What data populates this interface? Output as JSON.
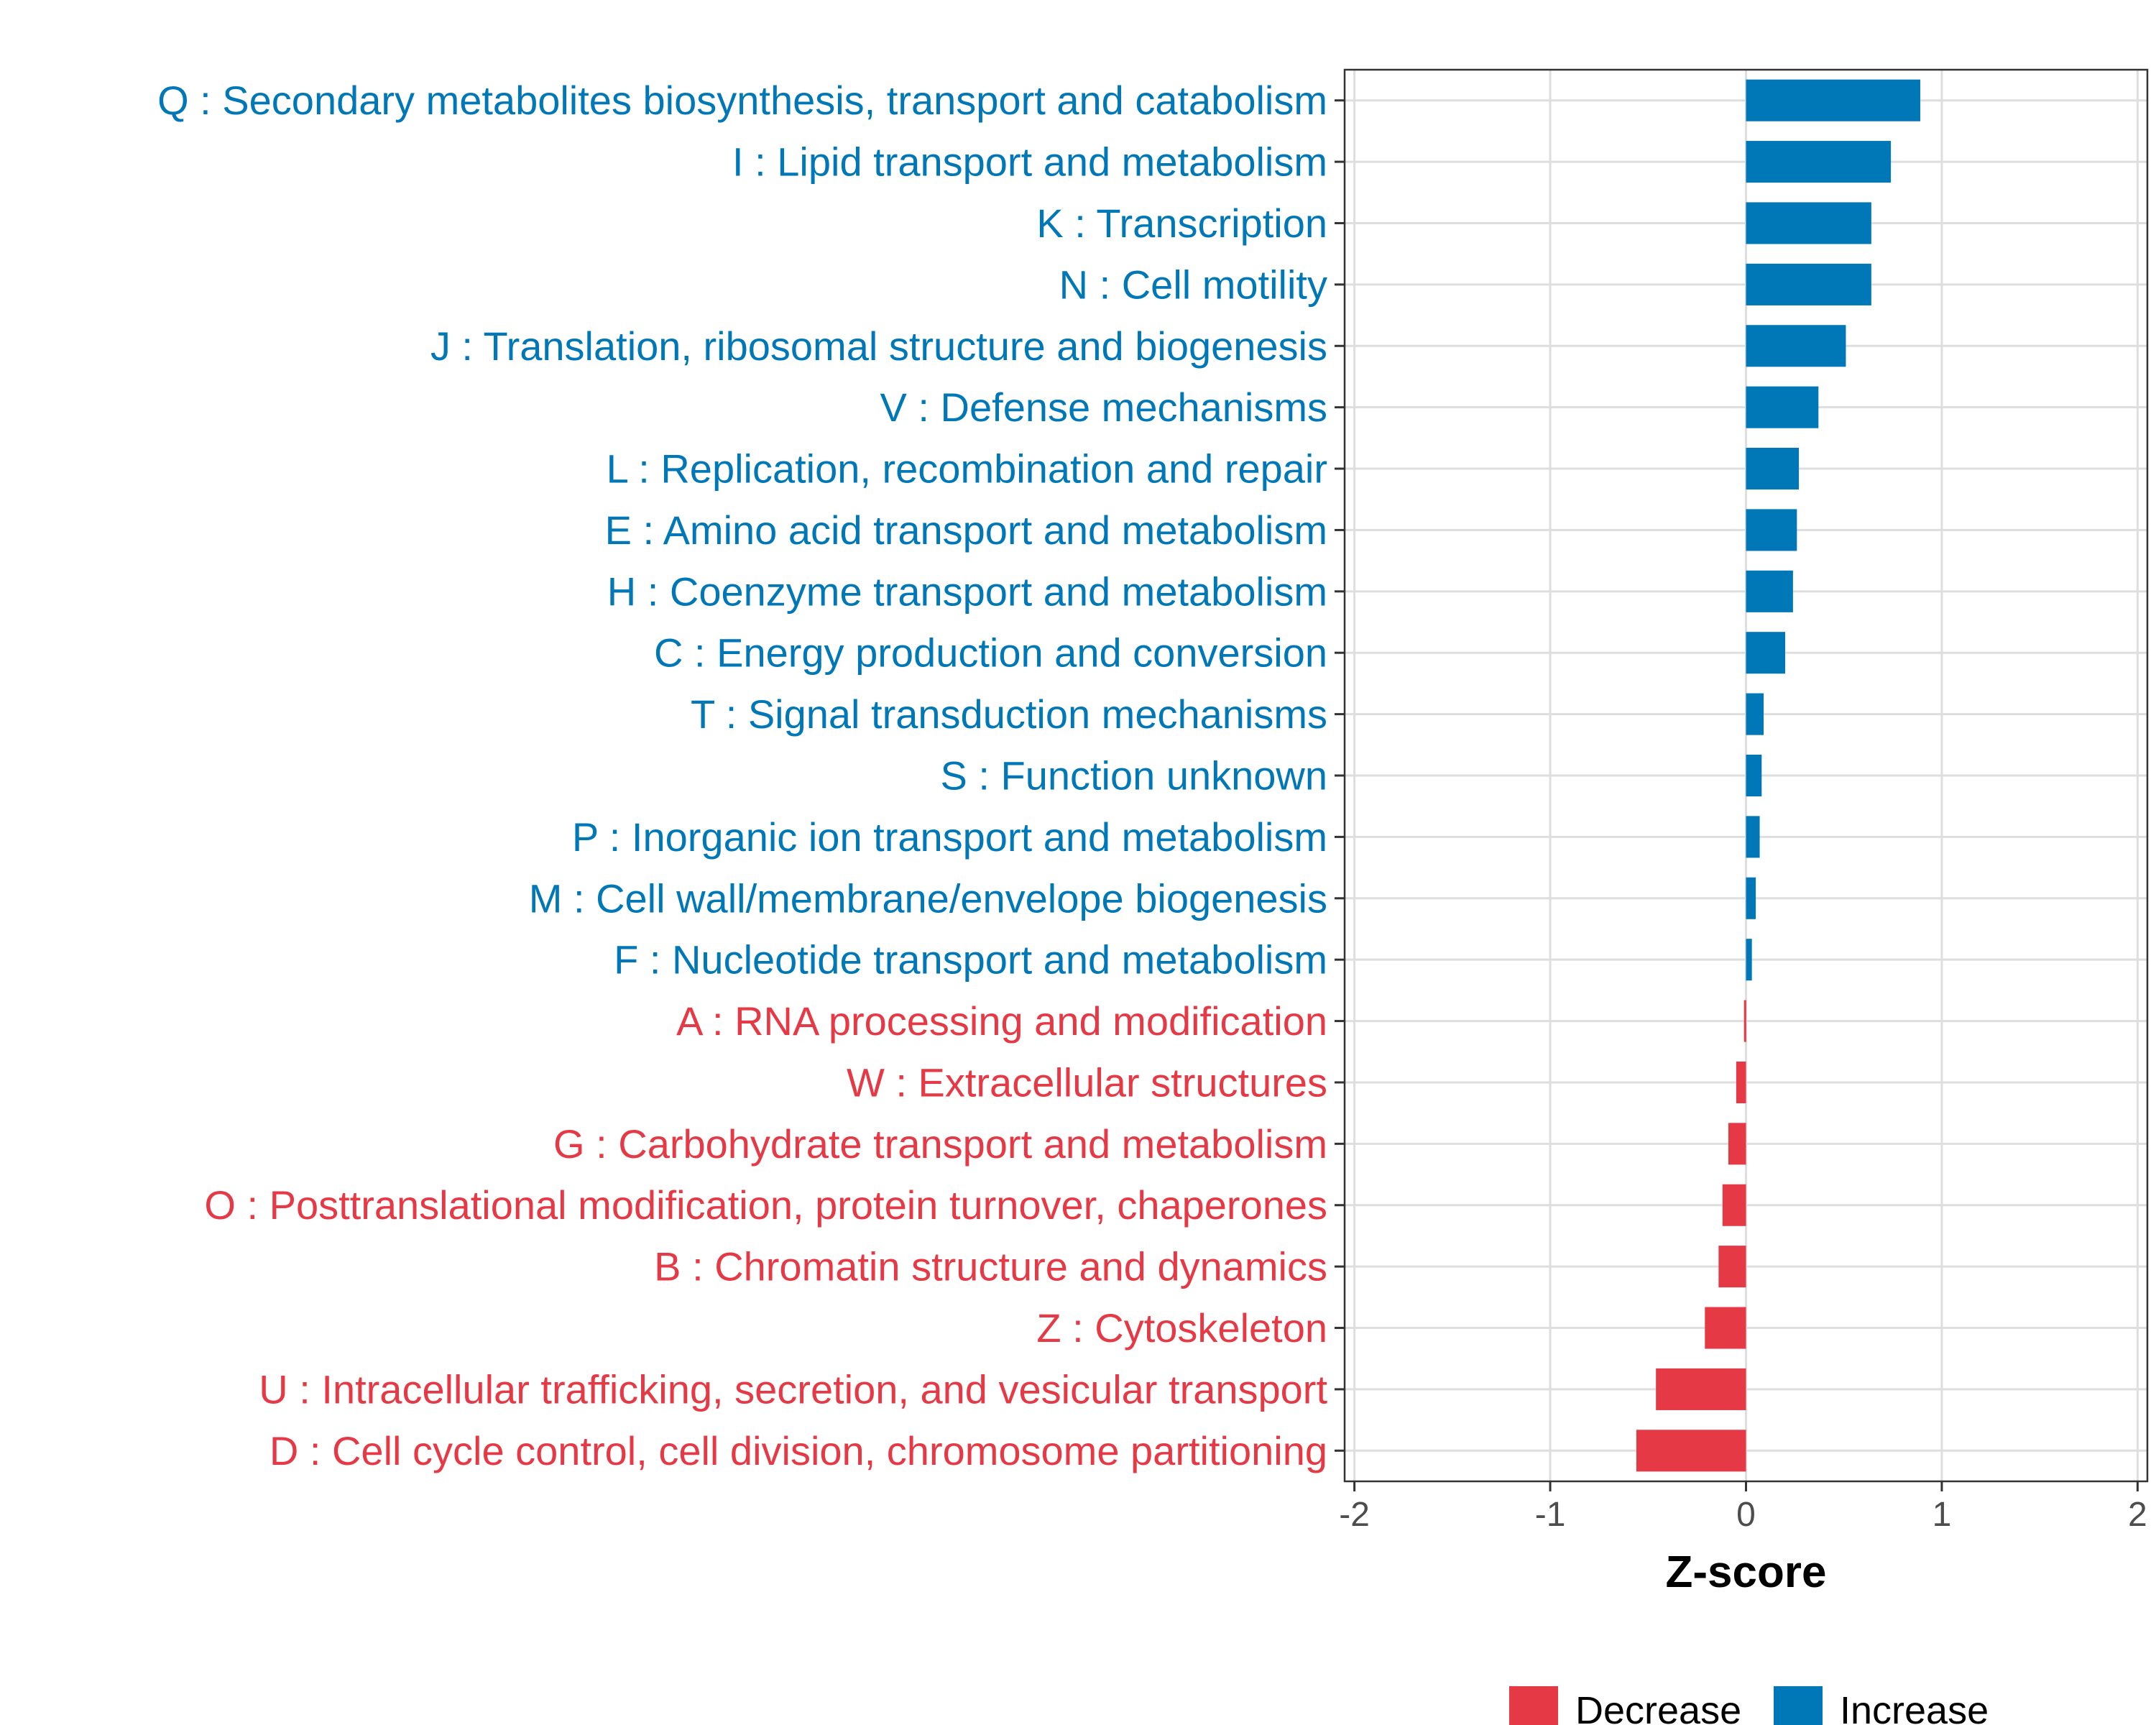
{
  "chart_data": {
    "type": "bar",
    "orientation": "horizontal",
    "xlabel": "Z-score",
    "ylabel": "",
    "xlim": [
      -2.05,
      2.05
    ],
    "xticks": [
      -2,
      -1,
      0,
      1,
      2
    ],
    "xtick_labels": [
      "-2",
      "-1",
      "0",
      "1",
      "2"
    ],
    "grid": true,
    "legend_position": "bottom",
    "colors": {
      "Decrease": "#e63946",
      "Increase": "#0077b6"
    },
    "categories": [
      "Q : Secondary metabolites biosynthesis, transport and catabolism",
      "I : Lipid transport and metabolism",
      "K : Transcription",
      "N : Cell motility",
      "J : Translation, ribosomal structure and biogenesis",
      "V : Defense mechanisms",
      "L : Replication, recombination and repair",
      "E : Amino acid transport and metabolism",
      "H : Coenzyme transport and metabolism",
      "C : Energy production and conversion",
      "T : Signal transduction mechanisms",
      "S : Function unknown",
      "P : Inorganic ion transport and metabolism",
      "M : Cell wall/membrane/envelope biogenesis",
      "F : Nucleotide transport and metabolism",
      "A : RNA processing and modification",
      "W : Extracellular structures",
      "G : Carbohydrate transport and metabolism",
      "O : Posttranslational modification, protein turnover, chaperones",
      "B : Chromatin structure and dynamics",
      "Z : Cytoskeleton",
      "U : Intracellular trafficking, secretion, and vesicular transport",
      "D : Cell cycle control, cell division, chromosome partitioning"
    ],
    "values": [
      0.89,
      0.74,
      0.64,
      0.64,
      0.51,
      0.37,
      0.27,
      0.26,
      0.24,
      0.2,
      0.09,
      0.08,
      0.07,
      0.05,
      0.03,
      -0.01,
      -0.05,
      -0.09,
      -0.12,
      -0.14,
      -0.21,
      -0.46,
      -0.56
    ],
    "groups": [
      "Increase",
      "Increase",
      "Increase",
      "Increase",
      "Increase",
      "Increase",
      "Increase",
      "Increase",
      "Increase",
      "Increase",
      "Increase",
      "Increase",
      "Increase",
      "Increase",
      "Increase",
      "Decrease",
      "Decrease",
      "Decrease",
      "Decrease",
      "Decrease",
      "Decrease",
      "Decrease",
      "Decrease"
    ],
    "legend": [
      {
        "label": "Decrease",
        "color": "#e63946"
      },
      {
        "label": "Increase",
        "color": "#0077b6"
      }
    ]
  }
}
